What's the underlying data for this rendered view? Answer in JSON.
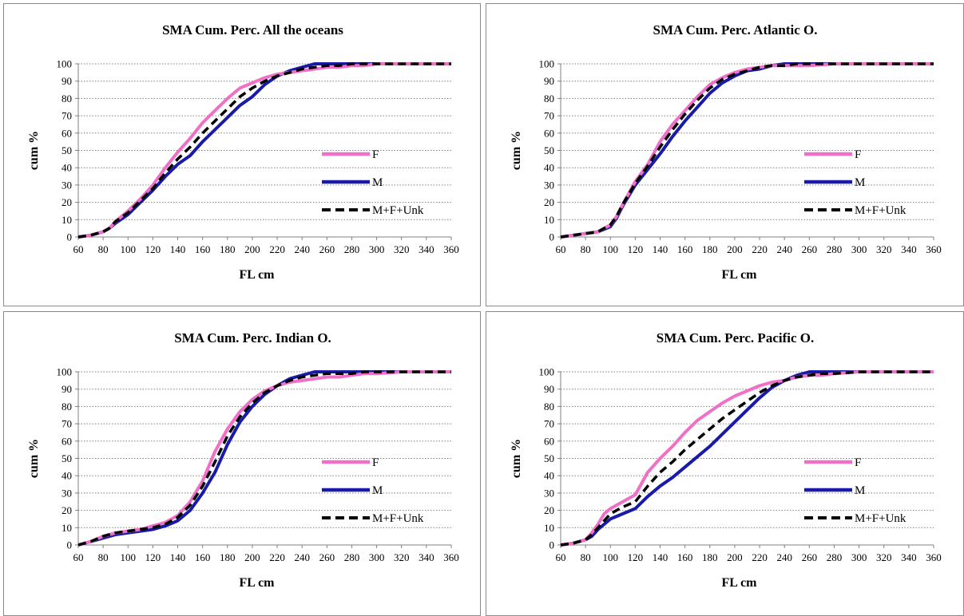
{
  "chart_data": [
    {
      "type": "line",
      "title": "SMA Cum. Perc.  All the oceans",
      "xlabel": "FL cm",
      "ylabel": "cum %",
      "xlim": [
        60,
        360
      ],
      "ylim": [
        0,
        100
      ],
      "xticks": [
        "60",
        "80",
        "100",
        "120",
        "140",
        "160",
        "180",
        "200",
        "220",
        "240",
        "260",
        "280",
        "300",
        "320",
        "340",
        "360"
      ],
      "yticks": [
        "0",
        "10",
        "20",
        "30",
        "40",
        "50",
        "60",
        "70",
        "80",
        "90",
        "100"
      ],
      "grid": "horizontal dotted",
      "legend_position": "right",
      "series": [
        {
          "name": "F",
          "color": "#f070c8",
          "dash": "solid",
          "x": [
            60,
            70,
            80,
            85,
            90,
            100,
            110,
            120,
            130,
            140,
            150,
            160,
            170,
            180,
            190,
            200,
            210,
            220,
            230,
            240,
            250,
            260,
            270,
            280,
            290,
            300,
            320,
            340,
            360
          ],
          "y": [
            0,
            1,
            3,
            5,
            9,
            15,
            22,
            30,
            40,
            49,
            57,
            66,
            73,
            80,
            86,
            89,
            92,
            94,
            95,
            96,
            97,
            98,
            98,
            99,
            99,
            100,
            100,
            100,
            100
          ]
        },
        {
          "name": "M",
          "color": "#1a1aa8",
          "dash": "solid",
          "x": [
            60,
            70,
            80,
            85,
            90,
            100,
            110,
            120,
            130,
            140,
            150,
            160,
            170,
            180,
            190,
            200,
            210,
            220,
            230,
            240,
            250,
            260,
            270,
            280,
            290,
            300,
            320,
            340,
            360
          ],
          "y": [
            0,
            1,
            3,
            5,
            8,
            13,
            20,
            27,
            35,
            42,
            47,
            55,
            62,
            69,
            76,
            81,
            88,
            93,
            96,
            98,
            100,
            100,
            100,
            100,
            100,
            100,
            100,
            100,
            100
          ]
        },
        {
          "name": "M+F+Unk",
          "color": "#000000",
          "dash": "dashed",
          "x": [
            60,
            70,
            80,
            85,
            90,
            100,
            110,
            120,
            130,
            140,
            150,
            160,
            170,
            180,
            190,
            200,
            210,
            220,
            230,
            240,
            250,
            260,
            270,
            280,
            290,
            300,
            320,
            340,
            360
          ],
          "y": [
            0,
            1,
            3,
            5,
            9,
            14,
            21,
            28,
            37,
            45,
            52,
            60,
            67,
            74,
            81,
            86,
            90,
            93,
            95,
            97,
            98,
            99,
            99,
            100,
            100,
            100,
            100,
            100,
            100
          ]
        }
      ]
    },
    {
      "type": "line",
      "title": "SMA Cum. Perc.  Atlantic O.",
      "xlabel": "FL cm",
      "ylabel": "cum %",
      "xlim": [
        60,
        360
      ],
      "ylim": [
        0,
        100
      ],
      "xticks": [
        "60",
        "80",
        "100",
        "120",
        "140",
        "160",
        "180",
        "200",
        "220",
        "240",
        "260",
        "280",
        "300",
        "320",
        "340",
        "360"
      ],
      "yticks": [
        "0",
        "10",
        "20",
        "30",
        "40",
        "50",
        "60",
        "70",
        "80",
        "90",
        "100"
      ],
      "grid": "horizontal dotted",
      "legend_position": "right",
      "series": [
        {
          "name": "F",
          "color": "#f070c8",
          "dash": "solid",
          "x": [
            60,
            70,
            80,
            90,
            100,
            105,
            110,
            120,
            130,
            140,
            150,
            160,
            170,
            180,
            190,
            200,
            210,
            220,
            230,
            240,
            250,
            260,
            280,
            300,
            320,
            340,
            360
          ],
          "y": [
            0,
            1,
            2,
            3,
            7,
            12,
            19,
            32,
            42,
            55,
            65,
            73,
            81,
            88,
            92,
            95,
            97,
            98,
            99,
            99,
            99,
            99,
            100,
            100,
            100,
            100,
            100
          ]
        },
        {
          "name": "M",
          "color": "#1a1aa8",
          "dash": "solid",
          "x": [
            60,
            70,
            80,
            90,
            100,
            105,
            110,
            120,
            130,
            140,
            150,
            160,
            170,
            180,
            190,
            200,
            210,
            220,
            230,
            240,
            250,
            260,
            280,
            300,
            320,
            340,
            360
          ],
          "y": [
            0,
            1,
            2,
            3,
            6,
            11,
            18,
            30,
            39,
            48,
            58,
            67,
            75,
            83,
            89,
            93,
            96,
            97,
            99,
            100,
            100,
            100,
            100,
            100,
            100,
            100,
            100
          ]
        },
        {
          "name": "M+F+Unk",
          "color": "#000000",
          "dash": "dashed",
          "x": [
            60,
            70,
            80,
            90,
            100,
            105,
            110,
            120,
            130,
            140,
            150,
            160,
            170,
            180,
            190,
            200,
            210,
            220,
            230,
            240,
            250,
            260,
            280,
            300,
            320,
            340,
            360
          ],
          "y": [
            0,
            1,
            2,
            3,
            7,
            12,
            19,
            31,
            41,
            52,
            62,
            71,
            79,
            86,
            91,
            94,
            96,
            98,
            99,
            99,
            100,
            100,
            100,
            100,
            100,
            100,
            100
          ]
        }
      ]
    },
    {
      "type": "line",
      "title": "SMA Cum. Perc.  Indian O.",
      "xlabel": "FL cm",
      "ylabel": "cum %",
      "xlim": [
        60,
        360
      ],
      "ylim": [
        0,
        100
      ],
      "xticks": [
        "60",
        "80",
        "100",
        "120",
        "140",
        "160",
        "180",
        "200",
        "220",
        "240",
        "260",
        "280",
        "300",
        "320",
        "340",
        "360"
      ],
      "yticks": [
        "0",
        "10",
        "20",
        "30",
        "40",
        "50",
        "60",
        "70",
        "80",
        "90",
        "100"
      ],
      "grid": "horizontal dotted",
      "legend_position": "right",
      "series": [
        {
          "name": "F",
          "color": "#f070c8",
          "dash": "solid",
          "x": [
            60,
            70,
            80,
            90,
            100,
            110,
            120,
            130,
            140,
            150,
            160,
            170,
            180,
            190,
            200,
            210,
            220,
            230,
            240,
            250,
            260,
            270,
            280,
            290,
            300,
            320,
            340,
            360
          ],
          "y": [
            0,
            2,
            5,
            7,
            8,
            9,
            11,
            13,
            17,
            25,
            37,
            54,
            67,
            77,
            84,
            89,
            92,
            94,
            95,
            96,
            97,
            97,
            98,
            99,
            99,
            100,
            100,
            100
          ]
        },
        {
          "name": "M",
          "color": "#1a1aa8",
          "dash": "solid",
          "x": [
            60,
            70,
            80,
            90,
            100,
            110,
            120,
            130,
            140,
            150,
            160,
            170,
            180,
            190,
            200,
            210,
            220,
            230,
            240,
            250,
            260,
            270,
            280,
            290,
            300,
            320,
            340,
            360
          ],
          "y": [
            0,
            2,
            4,
            6,
            7,
            8,
            9,
            11,
            14,
            20,
            30,
            42,
            58,
            71,
            80,
            87,
            92,
            96,
            98,
            100,
            100,
            100,
            100,
            100,
            100,
            100,
            100,
            100
          ]
        },
        {
          "name": "M+F+Unk",
          "color": "#000000",
          "dash": "dashed",
          "x": [
            60,
            70,
            80,
            90,
            100,
            110,
            120,
            130,
            140,
            150,
            160,
            170,
            180,
            190,
            200,
            210,
            220,
            230,
            240,
            250,
            260,
            270,
            280,
            290,
            300,
            320,
            340,
            360
          ],
          "y": [
            0,
            2,
            5,
            7,
            8,
            9,
            10,
            12,
            16,
            23,
            34,
            48,
            63,
            74,
            82,
            88,
            92,
            95,
            97,
            98,
            99,
            99,
            99,
            100,
            100,
            100,
            100,
            100
          ]
        }
      ]
    },
    {
      "type": "line",
      "title": "SMA Cum. Perc.  Pacific O.",
      "xlabel": "FL cm",
      "ylabel": "cum %",
      "xlim": [
        60,
        360
      ],
      "ylim": [
        0,
        100
      ],
      "xticks": [
        "60",
        "80",
        "100",
        "120",
        "140",
        "160",
        "180",
        "200",
        "220",
        "240",
        "260",
        "280",
        "300",
        "320",
        "340",
        "360"
      ],
      "yticks": [
        "0",
        "10",
        "20",
        "30",
        "40",
        "50",
        "60",
        "70",
        "80",
        "90",
        "100"
      ],
      "grid": "horizontal dotted",
      "legend_position": "right",
      "series": [
        {
          "name": "F",
          "color": "#f070c8",
          "dash": "solid",
          "x": [
            60,
            70,
            80,
            85,
            90,
            95,
            100,
            110,
            120,
            130,
            140,
            150,
            160,
            170,
            180,
            190,
            200,
            210,
            220,
            230,
            240,
            250,
            260,
            270,
            280,
            300,
            320,
            340,
            360
          ],
          "y": [
            0,
            1,
            3,
            7,
            12,
            18,
            21,
            25,
            29,
            42,
            50,
            57,
            65,
            72,
            77,
            82,
            86,
            89,
            92,
            94,
            95,
            97,
            98,
            98,
            99,
            100,
            100,
            100,
            100
          ]
        },
        {
          "name": "M",
          "color": "#1a1aa8",
          "dash": "solid",
          "x": [
            60,
            70,
            80,
            85,
            90,
            95,
            100,
            110,
            120,
            130,
            140,
            150,
            160,
            170,
            180,
            190,
            200,
            210,
            220,
            230,
            240,
            250,
            260,
            270,
            280,
            300,
            320,
            340,
            360
          ],
          "y": [
            0,
            1,
            3,
            5,
            9,
            12,
            15,
            18,
            21,
            28,
            34,
            39,
            45,
            51,
            57,
            64,
            71,
            78,
            85,
            91,
            95,
            98,
            100,
            100,
            100,
            100,
            100,
            100,
            100
          ]
        },
        {
          "name": "M+F+Unk",
          "color": "#000000",
          "dash": "dashed",
          "x": [
            60,
            70,
            80,
            85,
            90,
            95,
            100,
            110,
            120,
            130,
            140,
            150,
            160,
            170,
            180,
            190,
            200,
            210,
            220,
            230,
            240,
            250,
            260,
            270,
            280,
            300,
            320,
            340,
            360
          ],
          "y": [
            0,
            1,
            3,
            6,
            10,
            14,
            18,
            22,
            25,
            34,
            42,
            48,
            55,
            61,
            67,
            73,
            78,
            83,
            88,
            92,
            95,
            97,
            98,
            99,
            99,
            100,
            100,
            100,
            100
          ]
        }
      ]
    }
  ]
}
